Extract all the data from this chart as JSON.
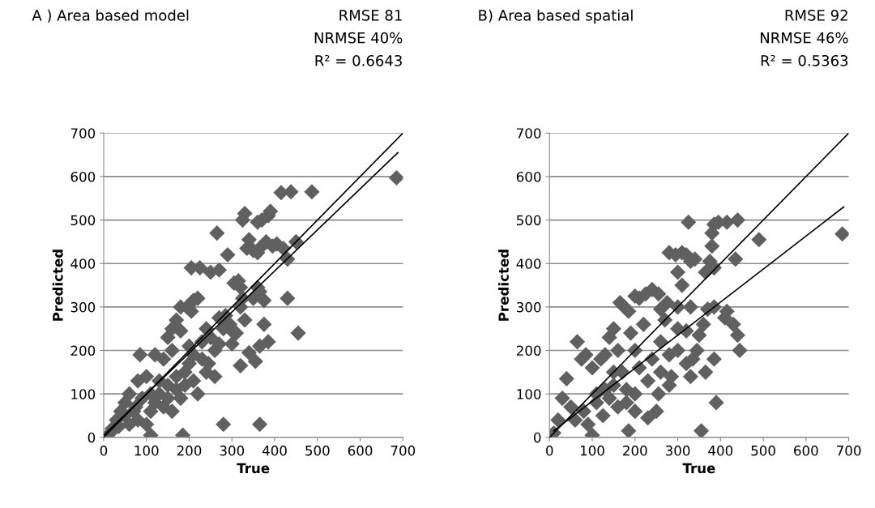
{
  "chart_data": [
    {
      "type": "scatter",
      "title": "A ) Area based model",
      "annotations": [
        "RMSE 81",
        "NRMSE 40%",
        "R² = 0.6643"
      ],
      "xlabel": "True",
      "ylabel": "Predicted",
      "xlim": [
        0,
        700
      ],
      "ylim": [
        0,
        700
      ],
      "xticks": [
        0,
        100,
        200,
        300,
        400,
        500,
        600,
        700
      ],
      "yticks": [
        0,
        100,
        200,
        300,
        400,
        500,
        600,
        700
      ],
      "grid": "y",
      "series": [
        {
          "marker": "diamond",
          "color": "#606060",
          "x": [
            685,
            487,
            438,
            415,
            390,
            385,
            330,
            325,
            370,
            360,
            340,
            380,
            370,
            395,
            405,
            335,
            350,
            360,
            265,
            290,
            430,
            450,
            420,
            270,
            225,
            205,
            250,
            315,
            320,
            305,
            325,
            360,
            365,
            430,
            375,
            375,
            385,
            455,
            365,
            355,
            340,
            320,
            300,
            310,
            270,
            285,
            220,
            210,
            180,
            195,
            170,
            205,
            240,
            260,
            250,
            280,
            295,
            330,
            320,
            270,
            230,
            240,
            260,
            200,
            190,
            160,
            140,
            150,
            120,
            85,
            100,
            80,
            60,
            50,
            40,
            30,
            20,
            15,
            70,
            90,
            110,
            130,
            150,
            170,
            110,
            140,
            160,
            120,
            80,
            60,
            100,
            190,
            210,
            220,
            180,
            110,
            185,
            280,
            365,
            50,
            75,
            35,
            130,
            210,
            230,
            245,
            170,
            150,
            200,
            300,
            350,
            180,
            160
          ],
          "values": [
            597,
            565,
            565,
            563,
            520,
            510,
            515,
            500,
            500,
            495,
            455,
            450,
            440,
            440,
            445,
            435,
            430,
            425,
            470,
            420,
            410,
            450,
            435,
            385,
            390,
            390,
            380,
            360,
            345,
            355,
            320,
            345,
            335,
            320,
            315,
            260,
            220,
            240,
            210,
            175,
            195,
            165,
            215,
            240,
            275,
            280,
            320,
            315,
            300,
            300,
            270,
            290,
            250,
            200,
            230,
            250,
            260,
            270,
            300,
            215,
            180,
            150,
            140,
            170,
            150,
            200,
            180,
            230,
            190,
            190,
            140,
            130,
            100,
            80,
            60,
            40,
            20,
            10,
            60,
            90,
            100,
            130,
            120,
            140,
            60,
            70,
            60,
            80,
            40,
            30,
            30,
            120,
            130,
            100,
            90,
            5,
            5,
            30,
            30,
            50,
            70,
            25,
            100,
            190,
            220,
            170,
            110,
            90,
            210,
            245,
            320,
            245,
            250
          ]
        },
        {
          "type": "line",
          "color": "#000000",
          "x": [
            0,
            700
          ],
          "values": [
            0,
            700
          ]
        },
        {
          "type": "line",
          "color": "#000000",
          "x": [
            0,
            688
          ],
          "values": [
            5,
            655
          ]
        }
      ]
    },
    {
      "type": "scatter",
      "title": "B) Area based spatial",
      "annotations": [
        "RMSE 92",
        "NRMSE 46%",
        "R² = 0.5363"
      ],
      "xlabel": "True",
      "ylabel": "Predicted",
      "xlim": [
        0,
        700
      ],
      "ylim": [
        0,
        700
      ],
      "xticks": [
        0,
        100,
        200,
        300,
        400,
        500,
        600,
        700
      ],
      "yticks": [
        0,
        100,
        200,
        300,
        400,
        500,
        600,
        700
      ],
      "grid": "y",
      "series": [
        {
          "marker": "diamond",
          "color": "#606060",
          "x": [
            685,
            490,
            440,
            415,
            395,
            385,
            325,
            380,
            380,
            340,
            310,
            320,
            330,
            280,
            295,
            300,
            375,
            385,
            435,
            365,
            240,
            225,
            210,
            200,
            255,
            275,
            300,
            260,
            185,
            165,
            175,
            330,
            370,
            385,
            410,
            415,
            430,
            440,
            445,
            385,
            365,
            355,
            390,
            310,
            300,
            320,
            345,
            335,
            350,
            330,
            285,
            255,
            230,
            185,
            180,
            120,
            75,
            65,
            85,
            100,
            40,
            30,
            50,
            20,
            10,
            60,
            80,
            110,
            130,
            150,
            170,
            200,
            220,
            190,
            140,
            150,
            130,
            160,
            210,
            240,
            260,
            280,
            250,
            200,
            100,
            125,
            90,
            140,
            160,
            180,
            300,
            270,
            260,
            360,
            320,
            280,
            230,
            110,
            150,
            200
          ],
          "values": [
            468,
            455,
            500,
            495,
            495,
            490,
            495,
            470,
            440,
            410,
            425,
            420,
            405,
            425,
            420,
            380,
            405,
            390,
            410,
            380,
            340,
            330,
            320,
            325,
            330,
            310,
            300,
            295,
            290,
            310,
            300,
            300,
            295,
            300,
            275,
            290,
            260,
            235,
            200,
            180,
            150,
            15,
            80,
            350,
            250,
            245,
            200,
            180,
            235,
            140,
            140,
            100,
            45,
            15,
            110,
            180,
            180,
            220,
            190,
            160,
            135,
            90,
            70,
            40,
            10,
            40,
            60,
            80,
            110,
            120,
            150,
            200,
            260,
            240,
            230,
            250,
            190,
            200,
            160,
            180,
            150,
            120,
            60,
            100,
            5,
            50,
            30,
            90,
            70,
            80,
            200,
            270,
            220,
            260,
            170,
            190,
            130,
            100,
            150,
            60
          ]
        },
        {
          "type": "line",
          "color": "#000000",
          "x": [
            0,
            700
          ],
          "values": [
            0,
            700
          ]
        },
        {
          "type": "line",
          "color": "#000000",
          "x": [
            10,
            688
          ],
          "values": [
            15,
            530
          ]
        }
      ]
    }
  ]
}
